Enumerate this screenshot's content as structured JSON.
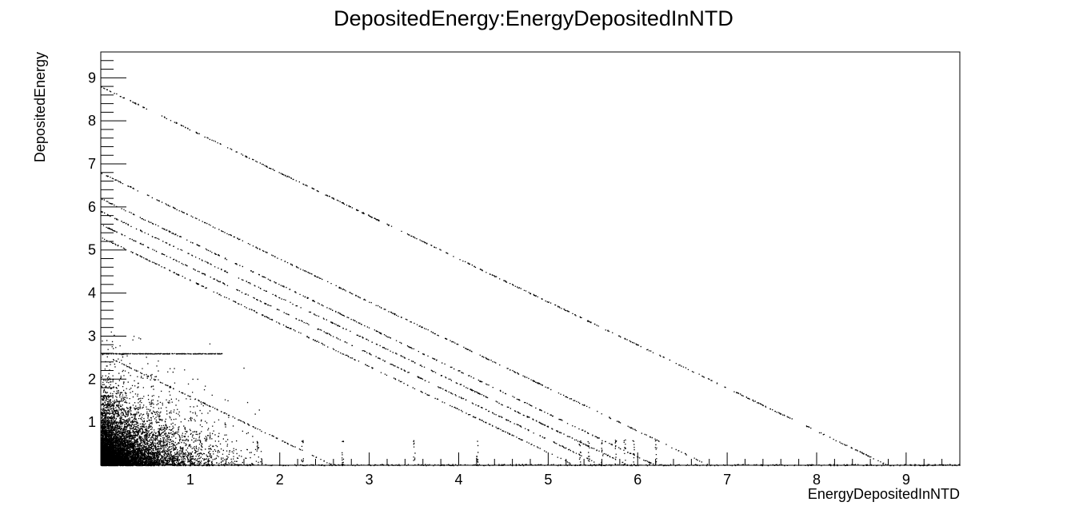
{
  "chart_data": {
    "type": "scatter",
    "title": "DepositedEnergy:EnergyDepositedInNTD",
    "xlabel": "EnergyDepositedInNTD",
    "ylabel": "DepositedEnergy",
    "xlim": [
      0,
      9.6
    ],
    "ylim": [
      0,
      9.6
    ],
    "x_ticks": [
      1,
      2,
      3,
      4,
      5,
      6,
      7,
      8,
      9
    ],
    "y_ticks": [
      1,
      2,
      3,
      4,
      5,
      6,
      7,
      8,
      9
    ],
    "grid": false,
    "legend": "none",
    "marker_color": "#000000",
    "bands": [
      {
        "sum": 8.8,
        "x_range": [
          0.0,
          8.8
        ]
      },
      {
        "sum": 6.8,
        "x_range": [
          0.0,
          6.8
        ]
      },
      {
        "sum": 6.2,
        "x_range": [
          0.0,
          6.2
        ]
      },
      {
        "sum": 5.9,
        "x_range": [
          0.0,
          5.9
        ]
      },
      {
        "sum": 5.6,
        "x_range": [
          0.0,
          5.6
        ]
      },
      {
        "sum": 5.3,
        "x_range": [
          0.0,
          5.3
        ]
      },
      {
        "sum": 2.6,
        "x_range": [
          0.0,
          2.6
        ]
      }
    ],
    "horizontal_bands": [
      {
        "y": 2.6,
        "x_range": [
          0.0,
          1.35
        ]
      }
    ],
    "dense_region": {
      "x_range": [
        0.0,
        1.8
      ],
      "y_range": [
        0.0,
        3.8
      ]
    },
    "x_axis_line_cluster": {
      "y": 0.0,
      "x_range": [
        0.0,
        9.6
      ]
    }
  }
}
